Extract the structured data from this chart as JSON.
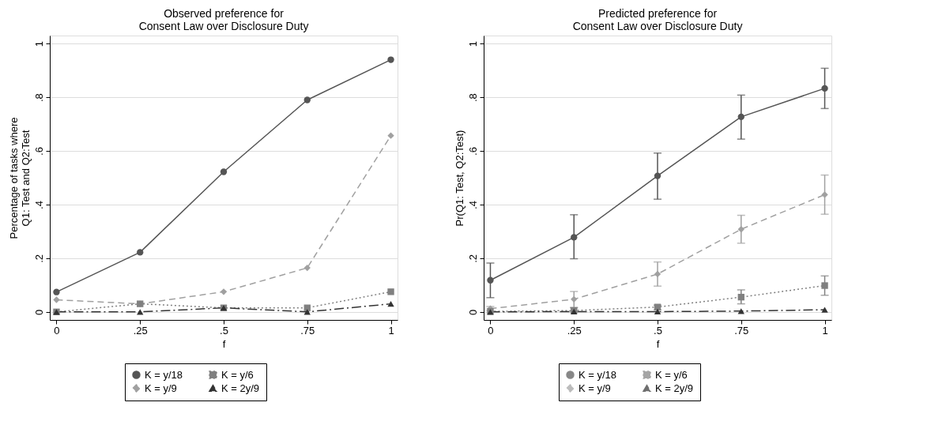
{
  "chart_data": [
    {
      "type": "line",
      "title": "Observed preference for\nConsent Law over Disclosure Duty",
      "xlabel": "f",
      "ylabel": "Percentage of tasks where\nQ1: Test and Q2:Test",
      "x": [
        0,
        0.25,
        0.5,
        0.75,
        1
      ],
      "xlim": [
        -0.02,
        1.02
      ],
      "ylim": [
        -0.03,
        1.03
      ],
      "xticks": [
        0,
        {
          "value": 0.25,
          "label": ".25"
        },
        {
          "value": 0.5,
          "label": ".5"
        },
        {
          "value": 0.75,
          "label": ".75"
        },
        1
      ],
      "yticks": [
        0,
        {
          "value": 0.2,
          "label": ".2"
        },
        {
          "value": 0.4,
          "label": ".4"
        },
        {
          "value": 0.6,
          "label": ".6"
        },
        {
          "value": 0.8,
          "label": ".8"
        },
        1
      ],
      "grid": "y",
      "legend": "bottom",
      "series": [
        {
          "name": "K = y/18",
          "color": "#555555",
          "marker": "circle",
          "line_style": "solid",
          "values": [
            0.074,
            0.222,
            0.522,
            0.79,
            0.94
          ]
        },
        {
          "name": "K = y/9",
          "color": "#a0a0a0",
          "marker": "diamond",
          "line_style": "dashed",
          "values": [
            0.045,
            0.03,
            0.075,
            0.164,
            0.657
          ]
        },
        {
          "name": "K = y/6",
          "color": "#808080",
          "marker": "square",
          "line_style": "dotted",
          "values": [
            0,
            0.03,
            0.015,
            0.015,
            0.075
          ]
        },
        {
          "name": "K = 2y/9",
          "color": "#333333",
          "marker": "triangle",
          "line_style": "dashdot",
          "values": [
            0,
            0,
            0.015,
            0,
            0.03
          ]
        }
      ]
    },
    {
      "type": "line",
      "title": "Predicted preference for\nConsent Law over Disclosure Duty",
      "xlabel": "f",
      "ylabel": "Pr(Q1: Test, Q2:Test)",
      "x": [
        0,
        0.25,
        0.5,
        0.75,
        1
      ],
      "xlim": [
        -0.02,
        1.02
      ],
      "ylim": [
        -0.03,
        1.03
      ],
      "xticks": [
        0,
        {
          "value": 0.25,
          "label": ".25"
        },
        {
          "value": 0.5,
          "label": ".5"
        },
        {
          "value": 0.75,
          "label": ".75"
        },
        1
      ],
      "yticks": [
        0,
        {
          "value": 0.2,
          "label": ".2"
        },
        {
          "value": 0.4,
          "label": ".4"
        },
        {
          "value": 0.6,
          "label": ".6"
        },
        {
          "value": 0.8,
          "label": ".8"
        },
        1
      ],
      "grid": "y",
      "legend": "bottom",
      "series": [
        {
          "name": "K = y/18",
          "color": "#555555",
          "marker": "circle",
          "line_style": "solid",
          "values": [
            0.118,
            0.278,
            0.507,
            0.727,
            0.833
          ],
          "errors": [
            [
              0.053,
              0.182
            ],
            [
              0.198,
              0.362
            ],
            [
              0.42,
              0.592
            ],
            [
              0.644,
              0.808
            ],
            [
              0.758,
              0.908
            ]
          ]
        },
        {
          "name": "K = y/9",
          "color": "#a0a0a0",
          "marker": "diamond",
          "line_style": "dashed",
          "values": [
            0.012,
            0.047,
            0.141,
            0.308,
            0.437
          ],
          "errors": [
            [
              0.005,
              0.02
            ],
            [
              0.017,
              0.076
            ],
            [
              0.096,
              0.186
            ],
            [
              0.256,
              0.36
            ],
            [
              0.364,
              0.51
            ]
          ]
        },
        {
          "name": "K = y/6",
          "color": "#808080",
          "marker": "square",
          "line_style": "dotted",
          "values": [
            0.002,
            0.005,
            0.018,
            0.055,
            0.098
          ],
          "errors": [
            null,
            [
              0,
              0.015
            ],
            [
              0.008,
              0.025
            ],
            [
              0.03,
              0.082
            ],
            [
              0.062,
              0.134
            ]
          ]
        },
        {
          "name": "K = 2y/9",
          "color": "#333333",
          "marker": "triangle",
          "line_style": "dashdot",
          "values": [
            0,
            0.001,
            0.001,
            0.003,
            0.008
          ]
        }
      ]
    }
  ]
}
